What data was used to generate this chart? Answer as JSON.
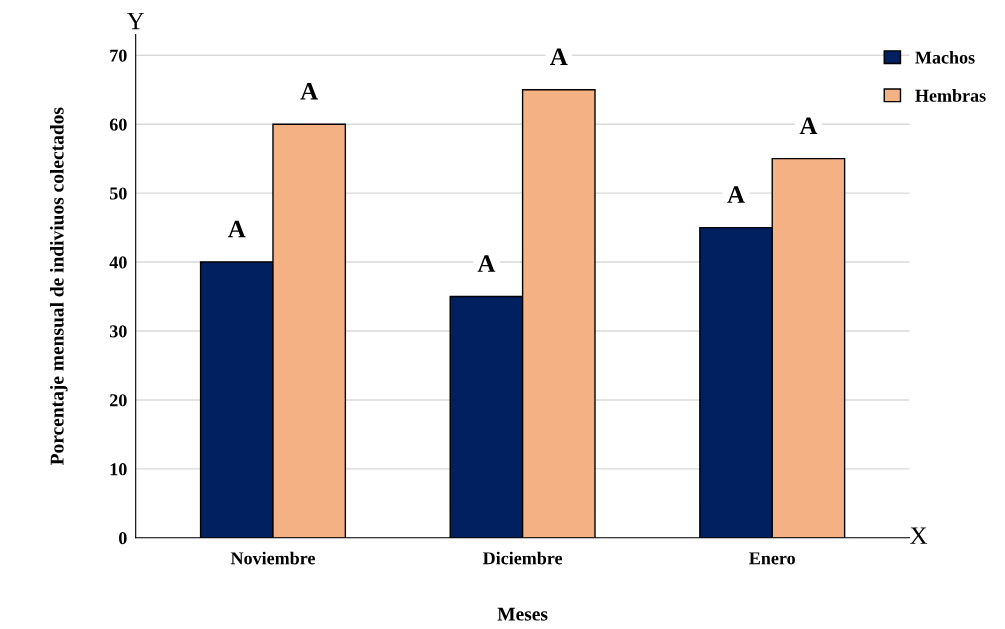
{
  "chart_data": {
    "type": "bar",
    "xlabel": "Meses",
    "ylabel": "Porcentaje mensual de indiviuos colectados",
    "categories": [
      "Noviembre",
      "Diciembre",
      "Enero"
    ],
    "series": [
      {
        "name": "Machos",
        "color": "#002060",
        "values": [
          40,
          35,
          45
        ]
      },
      {
        "name": "Hembras",
        "color": "#f4b183",
        "values": [
          60,
          65,
          55
        ]
      }
    ],
    "ylim": [
      0,
      73
    ],
    "yticks": [
      0,
      10,
      20,
      30,
      40,
      50,
      60,
      70
    ],
    "grid": "y",
    "legend": "top right",
    "annotations": [
      "Y",
      "X",
      {
        "text": "A",
        "x": "Noviembre",
        "y": 40
      },
      {
        "text": "A",
        "x": "Noviembre",
        "y": 60
      },
      {
        "text": "A",
        "x": "Diciembre",
        "y": 35
      },
      {
        "text": "A",
        "x": "Diciembre",
        "y": 65
      },
      {
        "text": "A",
        "x": "Enero",
        "y": 45
      },
      {
        "text": "A",
        "x": "Enero",
        "y": 55
      }
    ]
  }
}
